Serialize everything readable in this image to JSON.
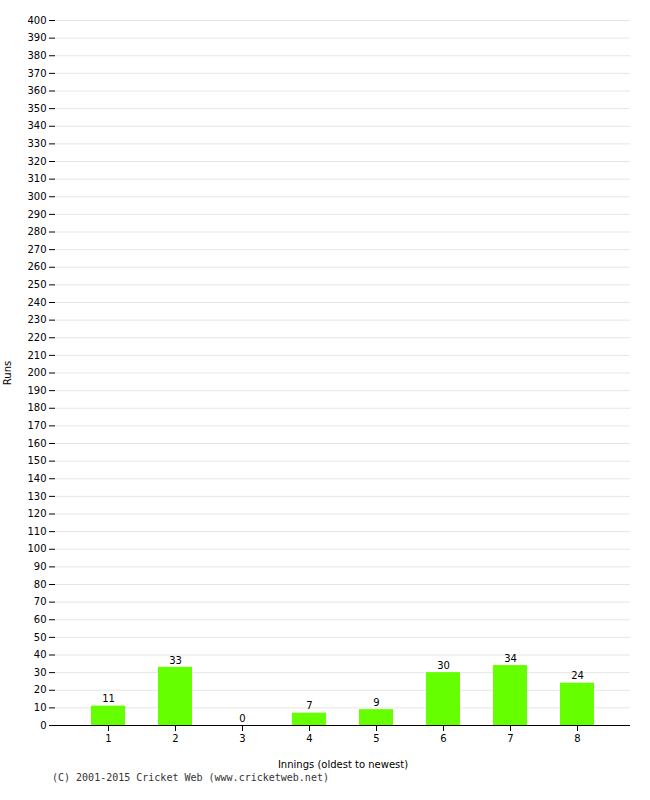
{
  "chart_data": {
    "type": "bar",
    "xlabel": "Innings (oldest to newest)",
    "ylabel": "Runs",
    "categories": [
      "1",
      "2",
      "3",
      "4",
      "5",
      "6",
      "7",
      "8"
    ],
    "values": [
      11,
      33,
      0,
      7,
      9,
      30,
      34,
      24
    ],
    "color": "#66ff00",
    "ylim": [
      0,
      400
    ],
    "yticks": [
      0,
      10,
      20,
      30,
      40,
      50,
      60,
      70,
      80,
      90,
      100,
      110,
      120,
      130,
      140,
      150,
      160,
      170,
      180,
      190,
      200,
      210,
      220,
      230,
      240,
      250,
      260,
      270,
      280,
      290,
      300,
      310,
      320,
      330,
      340,
      350,
      360,
      370,
      380,
      390,
      400
    ],
    "grid": true,
    "data_labels": true,
    "annotations": [
      "(C) 2001-2015 Cricket Web (www.cricketweb.net)"
    ]
  }
}
